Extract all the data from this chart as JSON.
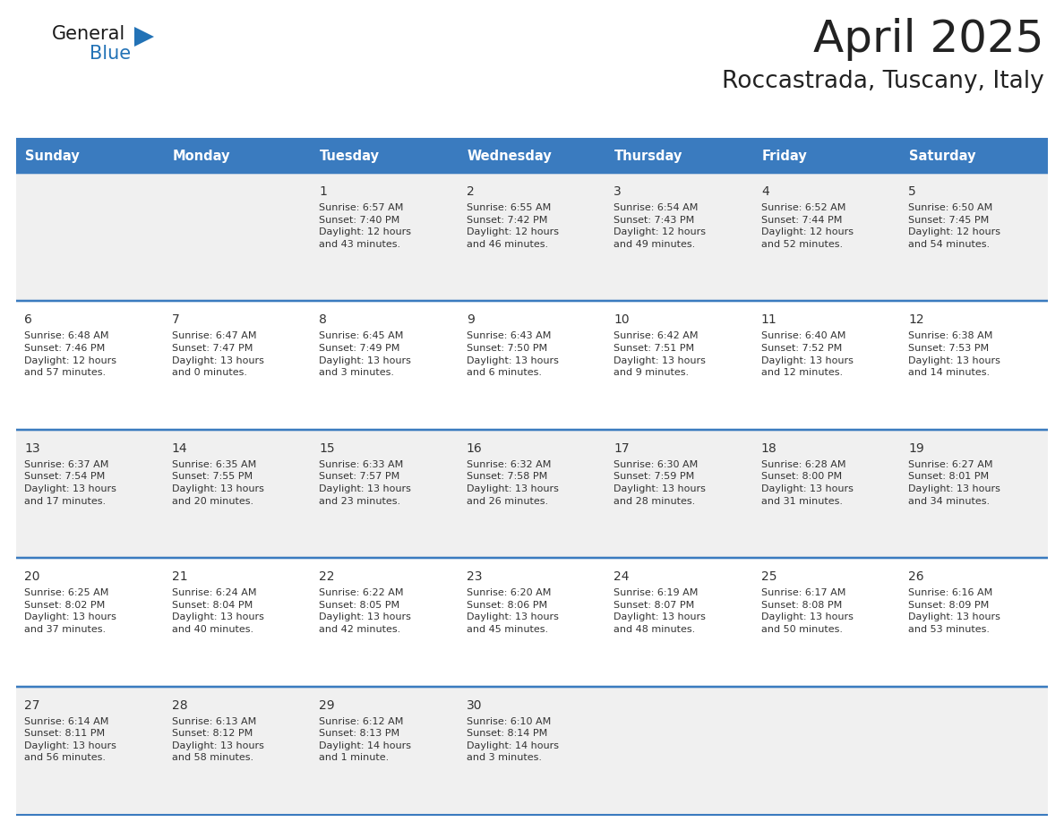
{
  "title": "April 2025",
  "subtitle": "Roccastrada, Tuscany, Italy",
  "days_of_week": [
    "Sunday",
    "Monday",
    "Tuesday",
    "Wednesday",
    "Thursday",
    "Friday",
    "Saturday"
  ],
  "header_bg": "#3a7bbf",
  "header_text": "#ffffff",
  "row_bg_odd": "#f0f0f0",
  "row_bg_even": "#ffffff",
  "border_color": "#3a7bbf",
  "text_color": "#333333",
  "title_color": "#222222",
  "logo_general_color": "#1a1a1a",
  "logo_blue_color": "#2272b6",
  "weeks": [
    {
      "days": [
        {
          "day": "",
          "text": ""
        },
        {
          "day": "",
          "text": ""
        },
        {
          "day": "1",
          "text": "Sunrise: 6:57 AM\nSunset: 7:40 PM\nDaylight: 12 hours\nand 43 minutes."
        },
        {
          "day": "2",
          "text": "Sunrise: 6:55 AM\nSunset: 7:42 PM\nDaylight: 12 hours\nand 46 minutes."
        },
        {
          "day": "3",
          "text": "Sunrise: 6:54 AM\nSunset: 7:43 PM\nDaylight: 12 hours\nand 49 minutes."
        },
        {
          "day": "4",
          "text": "Sunrise: 6:52 AM\nSunset: 7:44 PM\nDaylight: 12 hours\nand 52 minutes."
        },
        {
          "day": "5",
          "text": "Sunrise: 6:50 AM\nSunset: 7:45 PM\nDaylight: 12 hours\nand 54 minutes."
        }
      ]
    },
    {
      "days": [
        {
          "day": "6",
          "text": "Sunrise: 6:48 AM\nSunset: 7:46 PM\nDaylight: 12 hours\nand 57 minutes."
        },
        {
          "day": "7",
          "text": "Sunrise: 6:47 AM\nSunset: 7:47 PM\nDaylight: 13 hours\nand 0 minutes."
        },
        {
          "day": "8",
          "text": "Sunrise: 6:45 AM\nSunset: 7:49 PM\nDaylight: 13 hours\nand 3 minutes."
        },
        {
          "day": "9",
          "text": "Sunrise: 6:43 AM\nSunset: 7:50 PM\nDaylight: 13 hours\nand 6 minutes."
        },
        {
          "day": "10",
          "text": "Sunrise: 6:42 AM\nSunset: 7:51 PM\nDaylight: 13 hours\nand 9 minutes."
        },
        {
          "day": "11",
          "text": "Sunrise: 6:40 AM\nSunset: 7:52 PM\nDaylight: 13 hours\nand 12 minutes."
        },
        {
          "day": "12",
          "text": "Sunrise: 6:38 AM\nSunset: 7:53 PM\nDaylight: 13 hours\nand 14 minutes."
        }
      ]
    },
    {
      "days": [
        {
          "day": "13",
          "text": "Sunrise: 6:37 AM\nSunset: 7:54 PM\nDaylight: 13 hours\nand 17 minutes."
        },
        {
          "day": "14",
          "text": "Sunrise: 6:35 AM\nSunset: 7:55 PM\nDaylight: 13 hours\nand 20 minutes."
        },
        {
          "day": "15",
          "text": "Sunrise: 6:33 AM\nSunset: 7:57 PM\nDaylight: 13 hours\nand 23 minutes."
        },
        {
          "day": "16",
          "text": "Sunrise: 6:32 AM\nSunset: 7:58 PM\nDaylight: 13 hours\nand 26 minutes."
        },
        {
          "day": "17",
          "text": "Sunrise: 6:30 AM\nSunset: 7:59 PM\nDaylight: 13 hours\nand 28 minutes."
        },
        {
          "day": "18",
          "text": "Sunrise: 6:28 AM\nSunset: 8:00 PM\nDaylight: 13 hours\nand 31 minutes."
        },
        {
          "day": "19",
          "text": "Sunrise: 6:27 AM\nSunset: 8:01 PM\nDaylight: 13 hours\nand 34 minutes."
        }
      ]
    },
    {
      "days": [
        {
          "day": "20",
          "text": "Sunrise: 6:25 AM\nSunset: 8:02 PM\nDaylight: 13 hours\nand 37 minutes."
        },
        {
          "day": "21",
          "text": "Sunrise: 6:24 AM\nSunset: 8:04 PM\nDaylight: 13 hours\nand 40 minutes."
        },
        {
          "day": "22",
          "text": "Sunrise: 6:22 AM\nSunset: 8:05 PM\nDaylight: 13 hours\nand 42 minutes."
        },
        {
          "day": "23",
          "text": "Sunrise: 6:20 AM\nSunset: 8:06 PM\nDaylight: 13 hours\nand 45 minutes."
        },
        {
          "day": "24",
          "text": "Sunrise: 6:19 AM\nSunset: 8:07 PM\nDaylight: 13 hours\nand 48 minutes."
        },
        {
          "day": "25",
          "text": "Sunrise: 6:17 AM\nSunset: 8:08 PM\nDaylight: 13 hours\nand 50 minutes."
        },
        {
          "day": "26",
          "text": "Sunrise: 6:16 AM\nSunset: 8:09 PM\nDaylight: 13 hours\nand 53 minutes."
        }
      ]
    },
    {
      "days": [
        {
          "day": "27",
          "text": "Sunrise: 6:14 AM\nSunset: 8:11 PM\nDaylight: 13 hours\nand 56 minutes."
        },
        {
          "day": "28",
          "text": "Sunrise: 6:13 AM\nSunset: 8:12 PM\nDaylight: 13 hours\nand 58 minutes."
        },
        {
          "day": "29",
          "text": "Sunrise: 6:12 AM\nSunset: 8:13 PM\nDaylight: 14 hours\nand 1 minute."
        },
        {
          "day": "30",
          "text": "Sunrise: 6:10 AM\nSunset: 8:14 PM\nDaylight: 14 hours\nand 3 minutes."
        },
        {
          "day": "",
          "text": ""
        },
        {
          "day": "",
          "text": ""
        },
        {
          "day": "",
          "text": ""
        }
      ]
    }
  ]
}
